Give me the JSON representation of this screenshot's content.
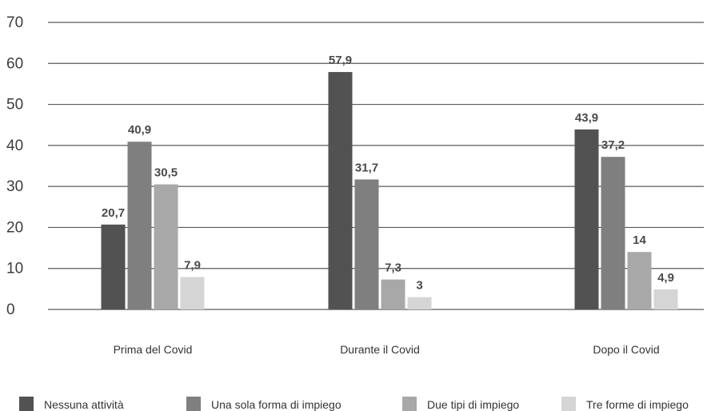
{
  "chart_data": {
    "type": "bar",
    "categories": [
      "Prima del Covid",
      "Durante il Covid",
      "Dopo il Covid"
    ],
    "series": [
      {
        "name": "Nessuna attività",
        "color": "#525252",
        "values": [
          20.7,
          57.9,
          43.9
        ],
        "labels": [
          "20,7",
          "57,9",
          "43,9"
        ]
      },
      {
        "name": "Una sola forma di impiego",
        "color": "#7f7f7f",
        "values": [
          40.9,
          31.7,
          37.2
        ],
        "labels": [
          "40,9",
          "31,7",
          "37,2"
        ]
      },
      {
        "name": "Due tipi di impiego",
        "color": "#a8a8a8",
        "values": [
          30.5,
          7.3,
          14
        ],
        "labels": [
          "30,5",
          "7,3",
          "14"
        ]
      },
      {
        "name": "Tre forme di impiego",
        "color": "#d5d5d5",
        "values": [
          7.9,
          3,
          4.9
        ],
        "labels": [
          "7,9",
          "3",
          "4,9"
        ]
      }
    ],
    "yticks": [
      "0",
      "10",
      "20",
      "30",
      "40",
      "50",
      "60",
      "70"
    ],
    "ylim": [
      0,
      70
    ],
    "grid": true,
    "legend_position": "bottom",
    "title": "",
    "xlabel": "",
    "ylabel": ""
  }
}
